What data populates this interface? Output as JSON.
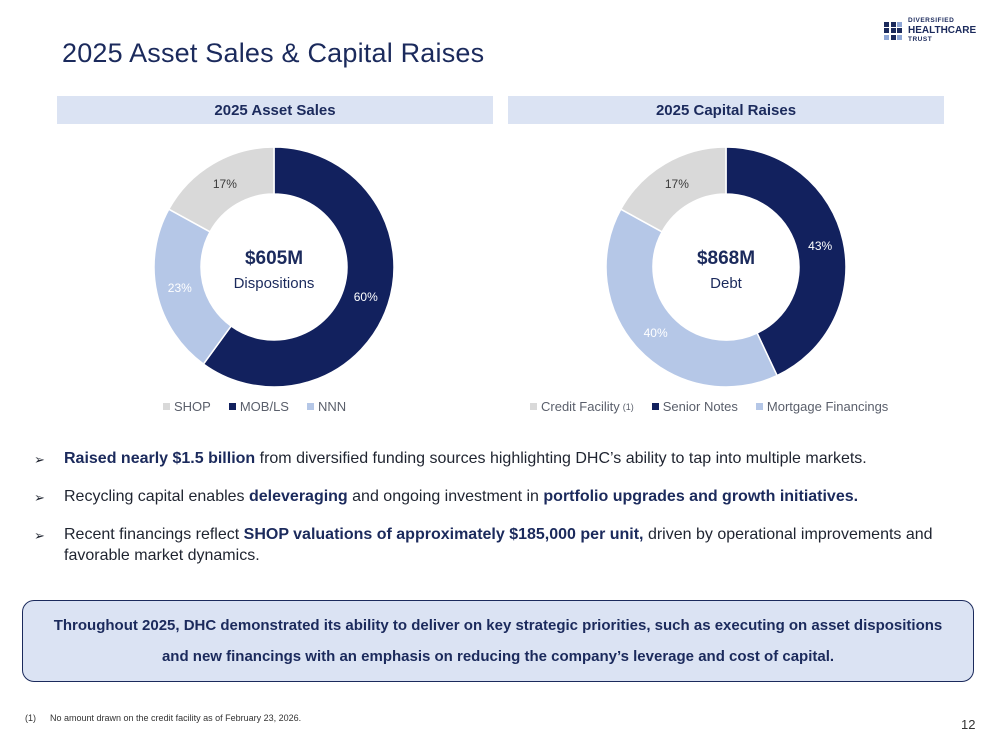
{
  "header": {
    "title": "2025 Asset Sales & Capital Raises",
    "logo": {
      "line1": "DIVERSIFIED",
      "line2": "HEALTHCARE",
      "line3": "TRUST"
    }
  },
  "chart_data": [
    {
      "type": "pie",
      "variant": "donut",
      "title": "2025 Asset Sales",
      "center_value": "$605M",
      "center_label": "Dispositions",
      "categories": [
        "SHOP",
        "MOB/LS",
        "NNN"
      ],
      "values": [
        17,
        60,
        23
      ],
      "colors": [
        "#d9d9d9",
        "#12215e",
        "#b5c7e7"
      ],
      "label_colors": [
        "#3a3a3a",
        "#ffffff",
        "#ffffff"
      ],
      "data_labels": [
        "17%",
        "60%",
        "23%"
      ],
      "legend_position": "bottom",
      "legend": [
        {
          "label": "SHOP",
          "sup": ""
        },
        {
          "label": "MOB/LS",
          "sup": ""
        },
        {
          "label": "NNN",
          "sup": ""
        }
      ]
    },
    {
      "type": "pie",
      "variant": "donut",
      "title": "2025 Capital Raises",
      "center_value": "$868M",
      "center_label": "Debt",
      "categories": [
        "Credit Facility",
        "Senior Notes",
        "Mortgage Financings"
      ],
      "values": [
        17,
        43,
        40
      ],
      "colors": [
        "#d9d9d9",
        "#12215e",
        "#b5c7e7"
      ],
      "label_colors": [
        "#3a3a3a",
        "#ffffff",
        "#ffffff"
      ],
      "data_labels": [
        "17%",
        "43%",
        "40%"
      ],
      "legend_position": "bottom",
      "legend": [
        {
          "label": "Credit Facility",
          "sup": "(1)"
        },
        {
          "label": "Senior Notes",
          "sup": ""
        },
        {
          "label": "Mortgage Financings",
          "sup": ""
        }
      ]
    }
  ],
  "bullets": [
    {
      "parts": [
        {
          "t": "Raised nearly $1.5 billion",
          "b": true
        },
        {
          "t": " from diversified funding sources highlighting DHC’s ability to tap into multiple markets.",
          "b": false
        }
      ]
    },
    {
      "parts": [
        {
          "t": "Recycling capital enables ",
          "b": false
        },
        {
          "t": "deleveraging",
          "b": true
        },
        {
          "t": " and ongoing investment in ",
          "b": false
        },
        {
          "t": "portfolio upgrades and growth initiatives.",
          "b": true
        }
      ]
    },
    {
      "parts": [
        {
          "t": "Recent financings reflect ",
          "b": false
        },
        {
          "t": "SHOP valuations of approximately $185,000 per unit,",
          "b": true
        },
        {
          "t": " driven by operational improvements and favorable market dynamics.",
          "b": false
        }
      ]
    }
  ],
  "callout": "Throughout 2025, DHC demonstrated its ability to deliver on key strategic priorities, such as executing on asset dispositions and new financings with an emphasis on reducing the company’s leverage and cost of capital.",
  "footnote": {
    "number": "(1)",
    "text": "No amount drawn on the credit facility as of February 23, 2026."
  },
  "page_number": "12"
}
